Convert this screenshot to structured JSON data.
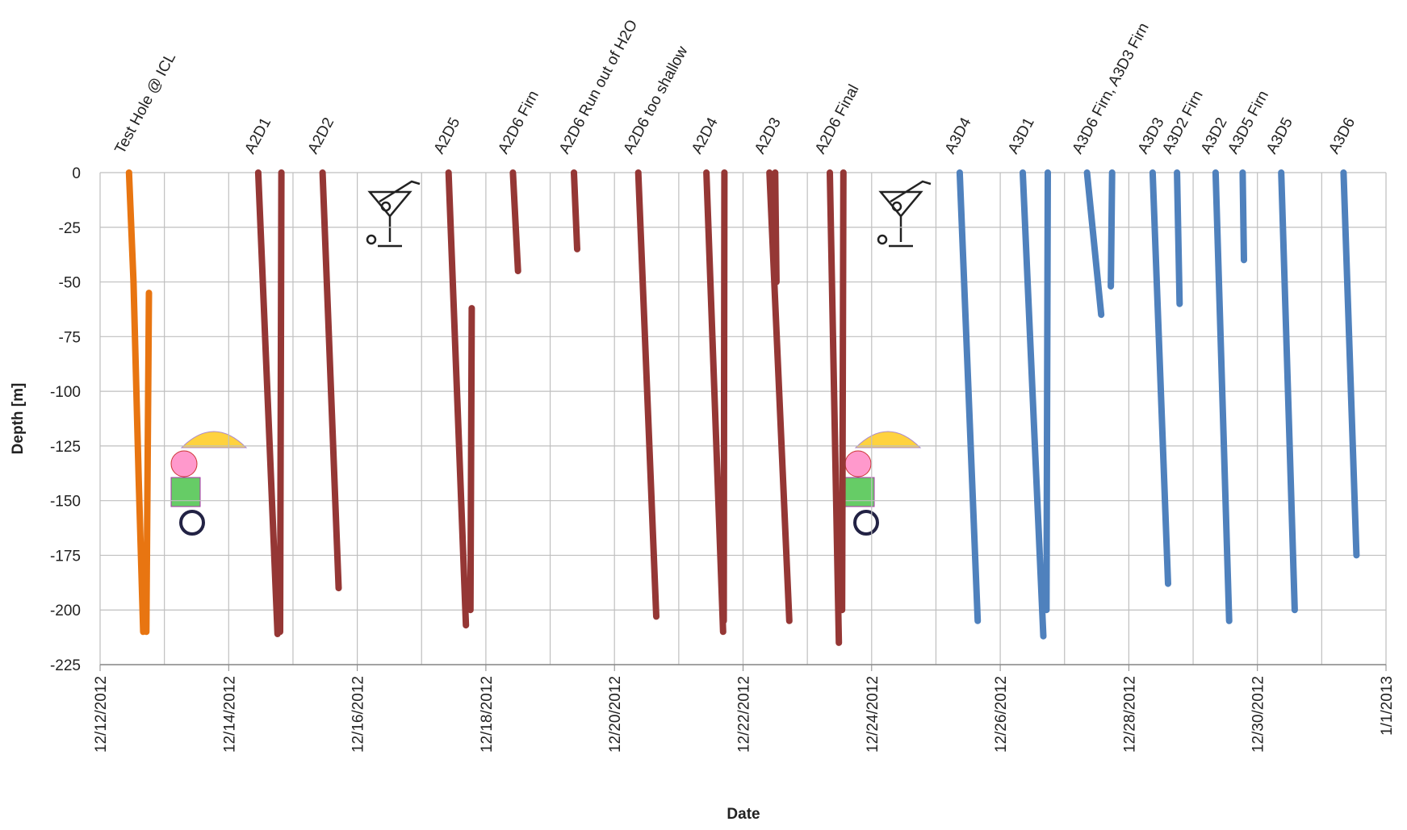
{
  "chart_data": {
    "type": "line",
    "xlabel": "Date",
    "ylabel": "Depth [m]",
    "xlim": [
      0,
      20
    ],
    "ylim": [
      -225,
      0
    ],
    "xticks": [
      {
        "value": 0,
        "label": "12/12/2012"
      },
      {
        "value": 2,
        "label": "12/14/2012"
      },
      {
        "value": 4,
        "label": "12/16/2012"
      },
      {
        "value": 6,
        "label": "12/18/2012"
      },
      {
        "value": 8,
        "label": "12/20/2012"
      },
      {
        "value": 10,
        "label": "12/22/2012"
      },
      {
        "value": 12,
        "label": "12/24/2012"
      },
      {
        "value": 14,
        "label": "12/26/2012"
      },
      {
        "value": 16,
        "label": "12/28/2012"
      },
      {
        "value": 18,
        "label": "12/30/2012"
      },
      {
        "value": 20,
        "label": "1/1/2013"
      }
    ],
    "x_minor_ticks": [
      1,
      3,
      5,
      7,
      9,
      11,
      13,
      15,
      17,
      19
    ],
    "yticks": [
      0,
      -25,
      -50,
      -75,
      -100,
      -125,
      -150,
      -175,
      -200,
      -225
    ],
    "grid": true,
    "annotations": [
      {
        "text": "Test Hole @ ICL",
        "x": 0.46
      },
      {
        "text": "A2D1",
        "x": 2.48
      },
      {
        "text": "A2D2",
        "x": 3.46
      },
      {
        "text": "A2D5",
        "x": 5.42
      },
      {
        "text": "A2D6 Firn",
        "x": 6.42
      },
      {
        "text": "A2D6 Run out of H2O",
        "x": 7.37
      },
      {
        "text": "A2D6 too shallow",
        "x": 8.37
      },
      {
        "text": "A2D4",
        "x": 9.43
      },
      {
        "text": "A2D3",
        "x": 10.41
      },
      {
        "text": "A2D6 Final",
        "x": 11.35
      },
      {
        "text": "A3D4",
        "x": 13.37
      },
      {
        "text": "A3D1",
        "x": 14.35
      },
      {
        "text": "A3D6 Firn, A3D3 Firn",
        "x": 15.35
      },
      {
        "text": "A3D3",
        "x": 16.37
      },
      {
        "text": "A3D2 Firn",
        "x": 16.75
      },
      {
        "text": "A3D2",
        "x": 17.35
      },
      {
        "text": "A3D5 Firn",
        "x": 17.77
      },
      {
        "text": "A3D5",
        "x": 18.37
      },
      {
        "text": "A3D6",
        "x": 19.34
      }
    ],
    "series": [
      {
        "color": "#e87511",
        "x": [
          0.45,
          0.52,
          0.6,
          0.67,
          null,
          0.76,
          0.72
        ],
        "values": [
          0,
          -50,
          -140,
          -210,
          null,
          -55,
          -210
        ]
      },
      {
        "color": "#953735",
        "x": [
          2.46,
          2.76,
          null,
          2.82,
          2.8,
          null,
          3.46,
          3.71,
          null,
          5.42,
          5.69,
          null,
          5.78,
          5.76,
          null,
          6.42,
          6.5,
          null,
          7.37,
          7.42,
          null,
          8.37,
          8.65,
          null,
          9.43,
          9.69,
          null,
          9.71,
          9.7,
          null,
          10.41,
          10.72,
          null,
          10.5,
          10.52,
          null,
          11.35,
          11.49,
          null,
          11.56,
          11.54
        ],
        "values": [
          0,
          -211,
          null,
          0,
          -210,
          null,
          0,
          -190,
          null,
          0,
          -207,
          null,
          -62,
          -200,
          null,
          0,
          -45,
          null,
          0,
          -35,
          null,
          0,
          -203,
          null,
          0,
          -210,
          null,
          0,
          -205,
          null,
          0,
          -205,
          null,
          0,
          -50,
          null,
          0,
          -215,
          null,
          0,
          -200
        ]
      },
      {
        "color": "#4f81bd",
        "x": [
          13.37,
          13.65,
          null,
          14.35,
          14.67,
          null,
          14.74,
          14.72,
          null,
          15.35,
          15.57,
          null,
          15.74,
          15.72,
          null,
          16.37,
          16.61,
          null,
          16.75,
          16.79,
          null,
          17.35,
          17.56,
          null,
          17.77,
          17.79,
          null,
          18.37,
          18.58,
          null,
          19.34,
          19.54
        ],
        "values": [
          0,
          -205,
          null,
          0,
          -212,
          null,
          0,
          -200,
          null,
          0,
          -65,
          null,
          0,
          -52,
          null,
          0,
          -188,
          null,
          0,
          -60,
          null,
          0,
          -205,
          null,
          0,
          -40,
          null,
          0,
          -200,
          null,
          0,
          -175
        ]
      }
    ]
  }
}
